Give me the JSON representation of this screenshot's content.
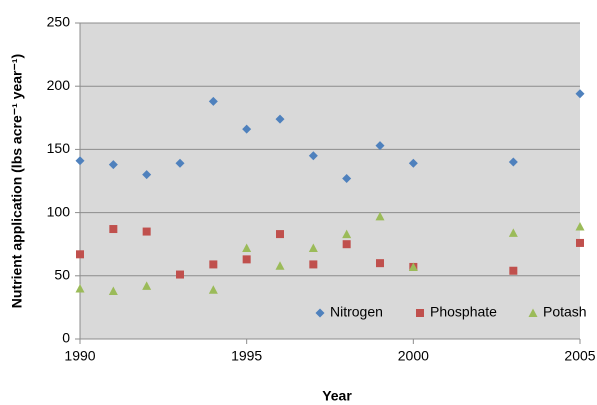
{
  "chart_data": {
    "type": "scatter",
    "xlabel": "Year",
    "ylabel": "Nutrient application (lbs acre⁻¹ year⁻¹)",
    "x": [
      1990,
      1991,
      1992,
      1993,
      1994,
      1995,
      1996,
      1997,
      1998,
      1999,
      2000,
      2003,
      2005
    ],
    "series": [
      {
        "name": "Nitrogen",
        "color": "#4f81bd",
        "marker": "diamond",
        "values": [
          141,
          138,
          130,
          139,
          188,
          166,
          174,
          145,
          127,
          153,
          139,
          140,
          194
        ]
      },
      {
        "name": "Phosphate",
        "color": "#c0504d",
        "marker": "square",
        "values": [
          67,
          87,
          85,
          51,
          59,
          63,
          83,
          59,
          75,
          60,
          57,
          54,
          76
        ]
      },
      {
        "name": "Potash",
        "color": "#9bbb59",
        "marker": "triangle",
        "values": [
          40,
          38,
          42,
          null,
          39,
          72,
          58,
          72,
          83,
          97,
          57,
          84,
          89
        ]
      }
    ],
    "xlim": [
      1990,
      2005
    ],
    "xticks": [
      1990,
      1995,
      2000,
      2005
    ],
    "ylim": [
      0,
      250
    ],
    "yticks": [
      0,
      50,
      100,
      150,
      200,
      250
    ],
    "grid": true,
    "legend": "lower right",
    "plot_background": "#d9d9d9"
  }
}
